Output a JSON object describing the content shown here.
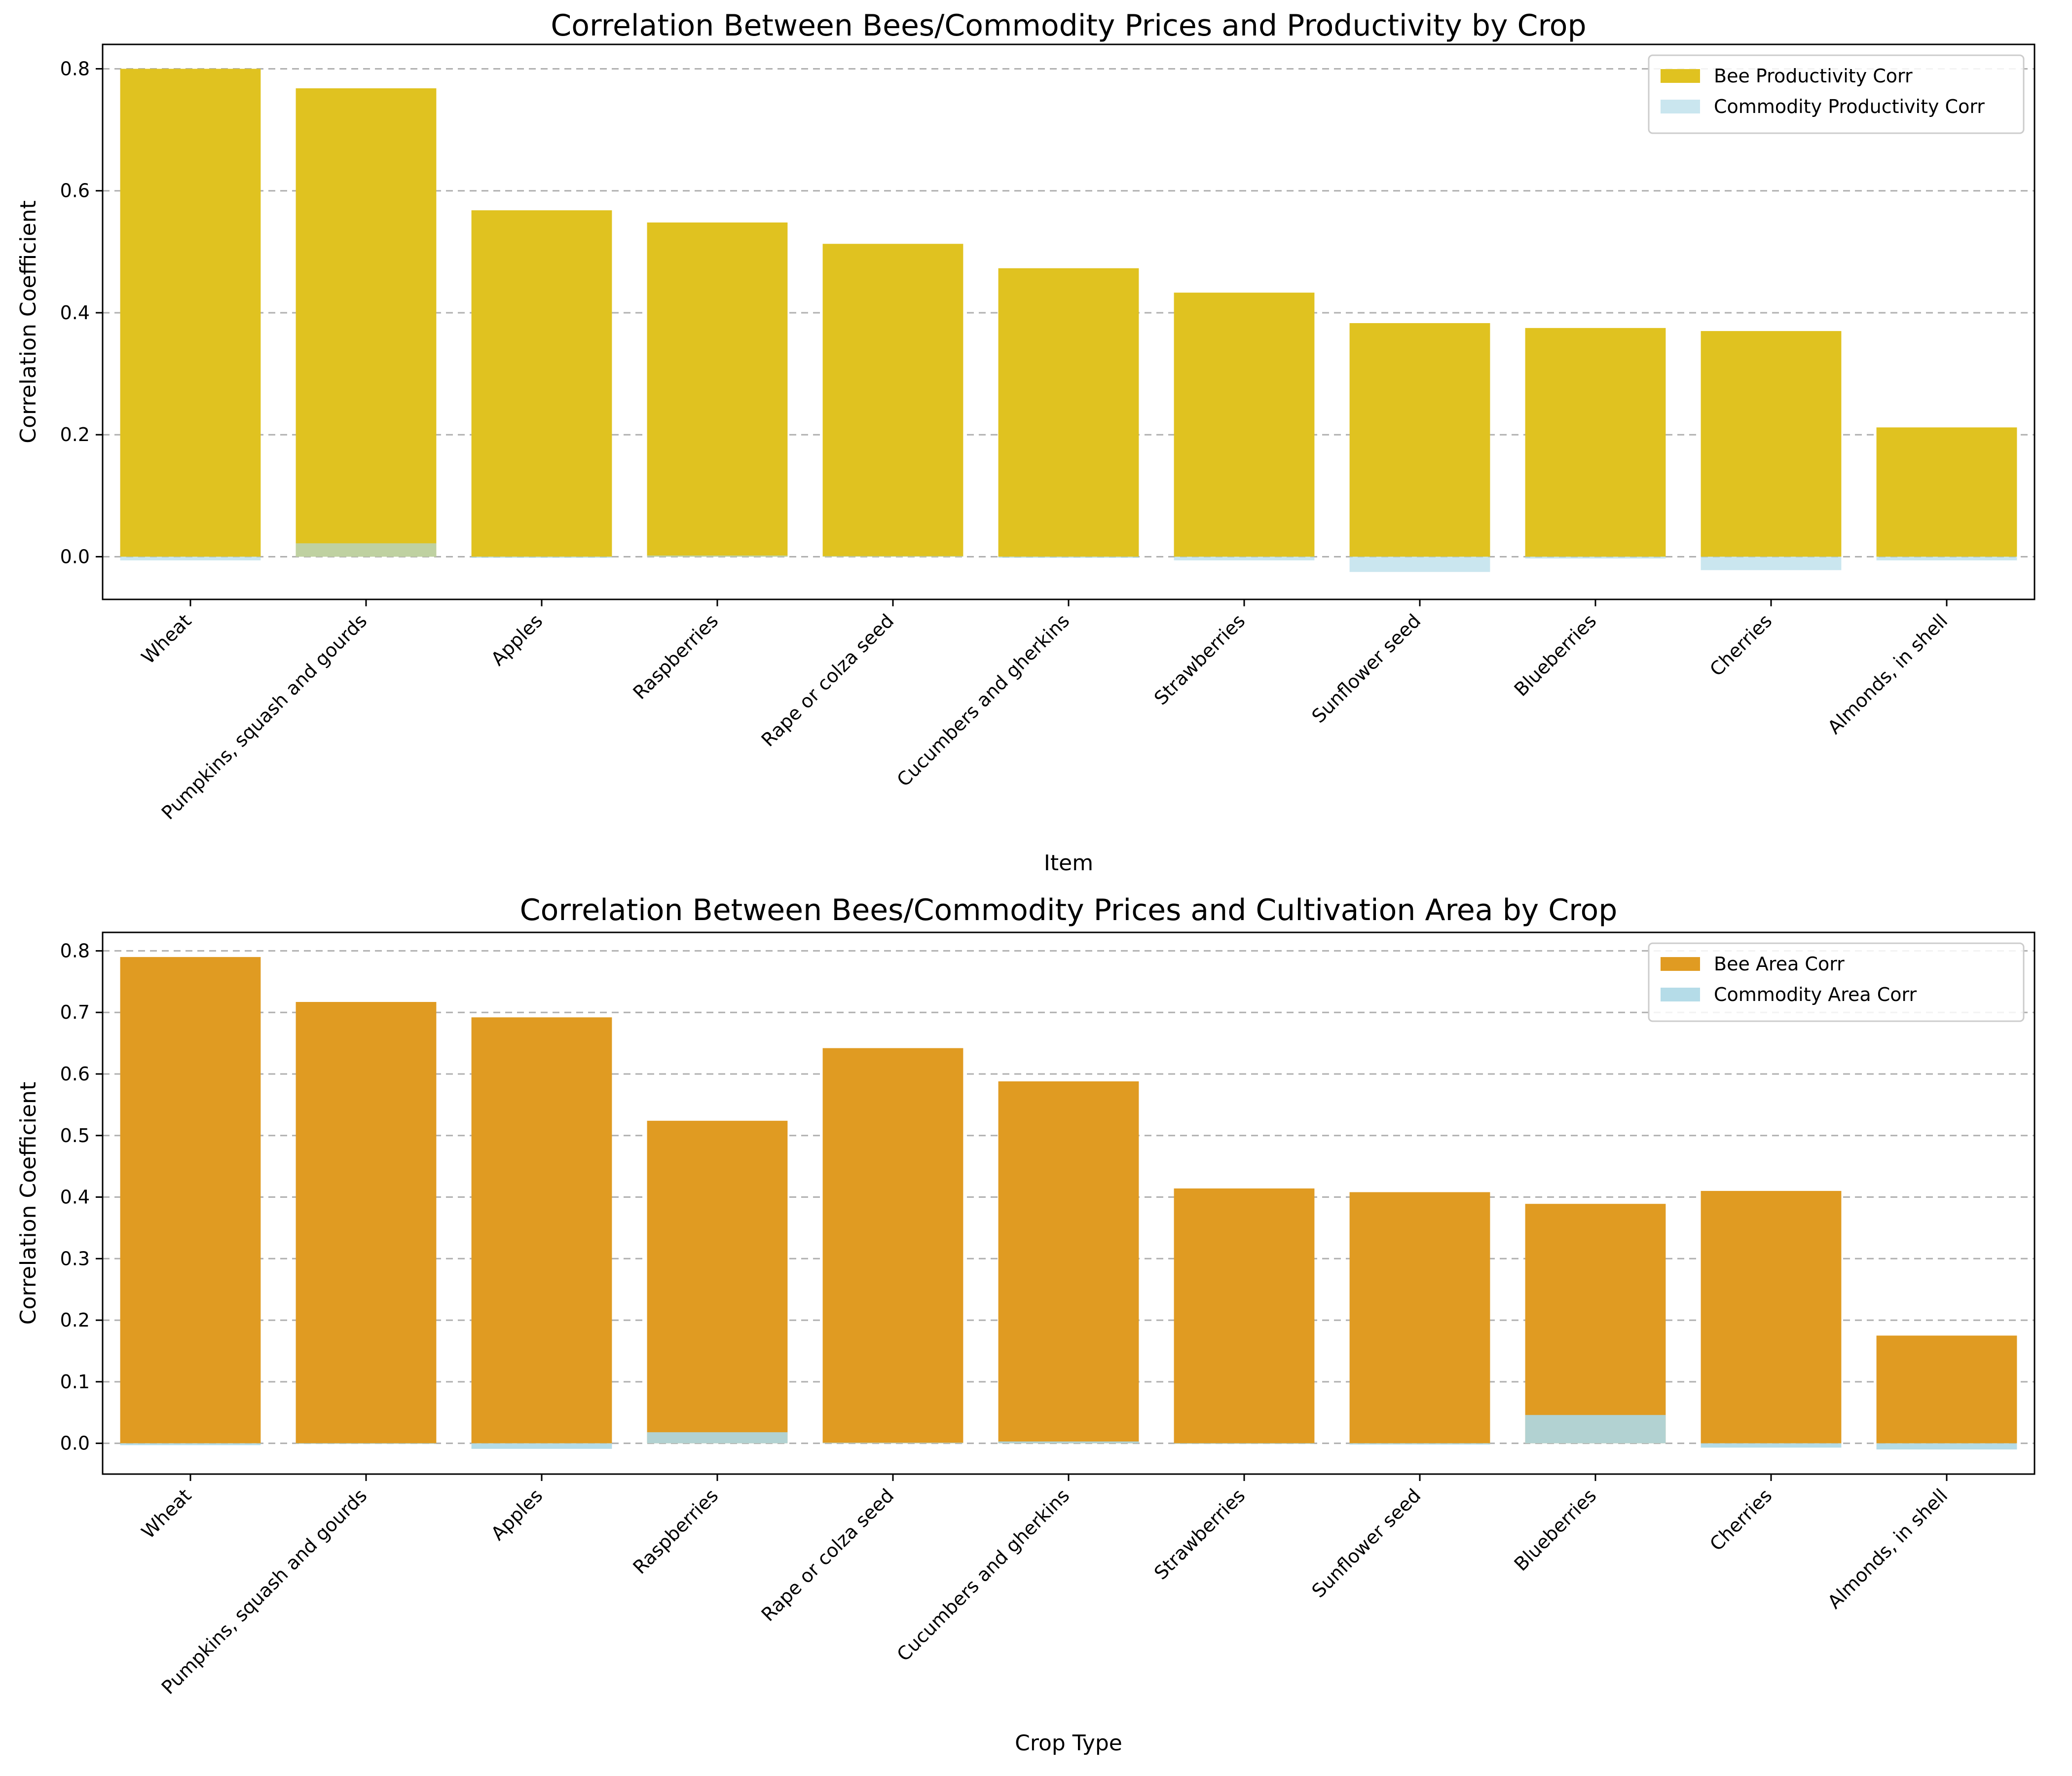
{
  "chart_data": [
    {
      "type": "bar",
      "title": "Correlation Between Bees/Commodity Prices and Productivity by Crop",
      "xlabel": "Item",
      "ylabel": "Correlation Coefficient",
      "ylim": [
        -0.07,
        0.84
      ],
      "yticks": [
        0.0,
        0.2,
        0.4,
        0.6,
        0.8
      ],
      "tick_format": "0.0",
      "grid": true,
      "legend_position": "top-right",
      "categories": [
        "Wheat",
        "Pumpkins, squash and gourds",
        "Apples",
        "Raspberries",
        "Rape or colza seed",
        "Cucumbers and gherkins",
        "Strawberries",
        "Sunflower seed",
        "Blueberries",
        "Cherries",
        "Almonds, in shell"
      ],
      "series": [
        {
          "name": "Bee Productivity Corr",
          "color": "#e0c220",
          "opacity": 1.0,
          "values": [
            0.8,
            0.768,
            0.568,
            0.548,
            0.513,
            0.473,
            0.433,
            0.383,
            0.375,
            0.37,
            0.212
          ]
        },
        {
          "name": "Commodity Productivity Corr",
          "color": "#add8e6",
          "opacity": 0.65,
          "values": [
            -0.006,
            0.022,
            -0.002,
            0.002,
            0.001,
            -0.002,
            -0.006,
            -0.025,
            -0.003,
            -0.022,
            -0.006
          ]
        }
      ]
    },
    {
      "type": "bar",
      "title": "Correlation Between Bees/Commodity Prices and Cultivation Area by Crop",
      "xlabel": "Crop Type",
      "ylabel": "Correlation Coefficient",
      "ylim": [
        -0.05,
        0.83
      ],
      "yticks": [
        0.0,
        0.1,
        0.2,
        0.3,
        0.4,
        0.5,
        0.6,
        0.7,
        0.8
      ],
      "tick_format": "0.0",
      "grid": true,
      "legend_position": "top-right",
      "categories": [
        "Wheat",
        "Pumpkins, squash and gourds",
        "Apples",
        "Raspberries",
        "Rape or colza seed",
        "Cucumbers and gherkins",
        "Strawberries",
        "Sunflower seed",
        "Blueberries",
        "Cherries",
        "Almonds, in shell"
      ],
      "series": [
        {
          "name": "Bee Area Corr",
          "color": "#e09b22",
          "opacity": 1.0,
          "values": [
            0.79,
            0.717,
            0.692,
            0.524,
            0.642,
            0.588,
            0.414,
            0.408,
            0.389,
            0.41,
            0.175
          ]
        },
        {
          "name": "Commodity Area Corr",
          "color": "#add8e6",
          "opacity": 0.9,
          "values": [
            -0.003,
            -0.001,
            -0.009,
            0.018,
            0.001,
            0.003,
            -0.001,
            -0.002,
            0.046,
            -0.007,
            -0.01
          ]
        }
      ]
    }
  ]
}
